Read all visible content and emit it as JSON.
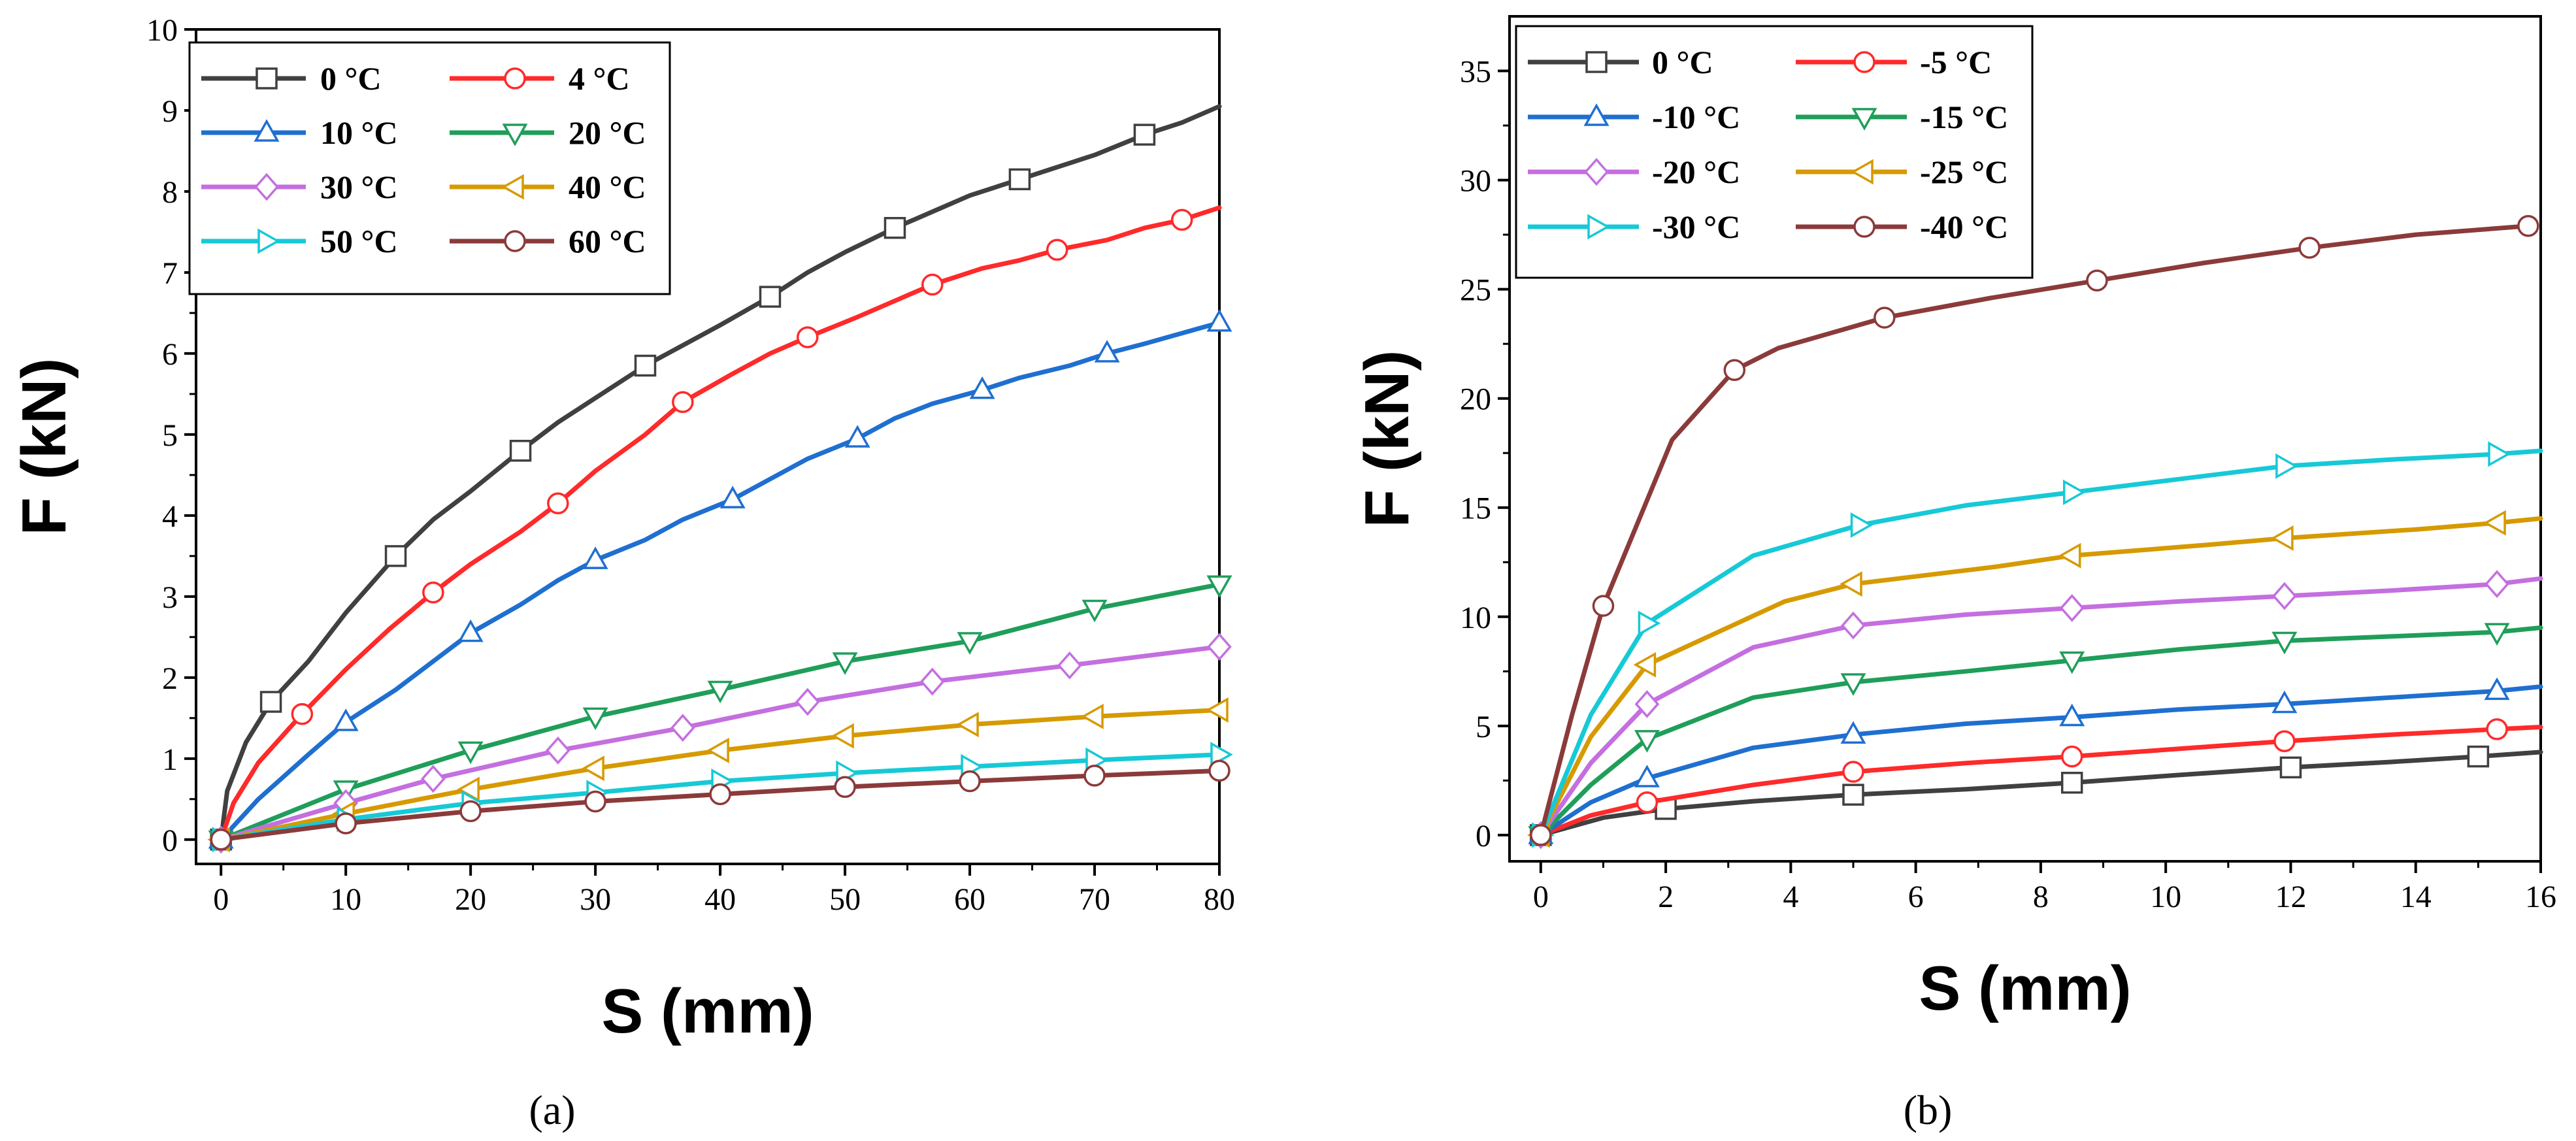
{
  "chart_data": [
    {
      "type": "line",
      "panel_label": "(a)",
      "xlabel": "S (mm)",
      "ylabel": "F (kN)",
      "xlim": [
        -2,
        80
      ],
      "ylim": [
        -0.3,
        10
      ],
      "xticks": [
        0,
        10,
        20,
        30,
        40,
        50,
        60,
        70,
        80
      ],
      "yticks": [
        0,
        1,
        2,
        3,
        4,
        5,
        6,
        7,
        8,
        9,
        10
      ],
      "grid": false,
      "legend_position": "top-left",
      "legend_columns": 2,
      "series": [
        {
          "name": "0 °C",
          "color": "#404040",
          "marker": "square",
          "x": [
            0,
            0.5,
            2,
            4,
            7,
            10,
            14,
            17,
            20,
            24,
            27,
            30,
            34,
            37,
            40,
            44,
            47,
            50,
            54,
            57,
            60,
            64,
            67,
            70,
            74,
            77,
            80
          ],
          "y": [
            0,
            0.6,
            1.2,
            1.7,
            2.2,
            2.8,
            3.5,
            3.95,
            4.3,
            4.8,
            5.15,
            5.45,
            5.85,
            6.1,
            6.35,
            6.7,
            7.0,
            7.25,
            7.55,
            7.75,
            7.95,
            8.15,
            8.3,
            8.45,
            8.7,
            8.85,
            9.05
          ]
        },
        {
          "name": "4 °C",
          "color": "#ff2a2a",
          "marker": "circle",
          "x": [
            0,
            1,
            3,
            6.5,
            10,
            13.5,
            17,
            20,
            24,
            27,
            30,
            34,
            37,
            41,
            44,
            47,
            51,
            54,
            57,
            61,
            64,
            67,
            71,
            74,
            77,
            80
          ],
          "y": [
            0,
            0.45,
            0.95,
            1.55,
            2.1,
            2.6,
            3.05,
            3.4,
            3.8,
            4.15,
            4.55,
            5.0,
            5.4,
            5.75,
            6.0,
            6.2,
            6.45,
            6.65,
            6.85,
            7.05,
            7.15,
            7.28,
            7.4,
            7.55,
            7.65,
            7.8
          ]
        },
        {
          "name": "10 °C",
          "color": "#1f6fd0",
          "marker": "triangle-up",
          "x": [
            0,
            3,
            7,
            10,
            14,
            17,
            20,
            24,
            27,
            30,
            34,
            37,
            41,
            44,
            47,
            51,
            54,
            57,
            61,
            64,
            68,
            71,
            74,
            77,
            80
          ],
          "y": [
            0,
            0.5,
            1.05,
            1.45,
            1.85,
            2.2,
            2.55,
            2.9,
            3.2,
            3.45,
            3.7,
            3.95,
            4.2,
            4.45,
            4.7,
            4.95,
            5.2,
            5.38,
            5.55,
            5.7,
            5.85,
            6.0,
            6.12,
            6.25,
            6.38
          ]
        },
        {
          "name": "20 °C",
          "color": "#1f9e5a",
          "marker": "triangle-down",
          "x": [
            0,
            10,
            20,
            30,
            40,
            50,
            60,
            70,
            80
          ],
          "y": [
            0,
            0.62,
            1.1,
            1.52,
            1.85,
            2.2,
            2.45,
            2.85,
            3.15
          ]
        },
        {
          "name": "30 °C",
          "color": "#c46fe0",
          "marker": "diamond",
          "x": [
            0,
            10,
            17,
            27,
            37,
            47,
            57,
            68,
            80
          ],
          "y": [
            0,
            0.45,
            0.75,
            1.1,
            1.38,
            1.7,
            1.95,
            2.15,
            2.38
          ]
        },
        {
          "name": "40 °C",
          "color": "#d69a00",
          "marker": "triangle-left",
          "x": [
            0,
            10,
            20,
            30,
            40,
            50,
            60,
            70,
            80
          ],
          "y": [
            0,
            0.32,
            0.62,
            0.88,
            1.1,
            1.28,
            1.42,
            1.52,
            1.6
          ]
        },
        {
          "name": "50 °C",
          "color": "#17c9d6",
          "marker": "triangle-right",
          "x": [
            0,
            10,
            20,
            30,
            40,
            50,
            60,
            70,
            80
          ],
          "y": [
            0,
            0.25,
            0.45,
            0.58,
            0.72,
            0.82,
            0.9,
            0.98,
            1.05
          ]
        },
        {
          "name": "60 °C",
          "color": "#8b3a3a",
          "marker": "circle",
          "x": [
            0,
            10,
            20,
            30,
            40,
            50,
            60,
            70,
            80
          ],
          "y": [
            0,
            0.2,
            0.35,
            0.47,
            0.56,
            0.65,
            0.72,
            0.79,
            0.85
          ]
        }
      ]
    },
    {
      "type": "line",
      "panel_label": "(b)",
      "xlabel": "S (mm)",
      "ylabel": "F (kN)",
      "xlim": [
        -0.5,
        16
      ],
      "ylim": [
        -1.2,
        37.5
      ],
      "xticks": [
        0,
        2,
        4,
        6,
        8,
        10,
        12,
        14,
        16
      ],
      "yticks": [
        0,
        5,
        10,
        15,
        20,
        25,
        30,
        35
      ],
      "grid": false,
      "legend_position": "top-left",
      "legend_columns": 2,
      "series": [
        {
          "name": "0 °C",
          "color": "#404040",
          "marker": "square",
          "x": [
            0,
            1,
            2,
            3.4,
            5,
            6.8,
            8.5,
            10.2,
            12,
            13.6,
            15,
            16
          ],
          "y": [
            0,
            0.8,
            1.2,
            1.55,
            1.85,
            2.1,
            2.4,
            2.75,
            3.1,
            3.35,
            3.6,
            3.8
          ]
        },
        {
          "name": "-5 °C",
          "color": "#ff2a2a",
          "marker": "circle",
          "x": [
            0,
            0.8,
            1.7,
            3.4,
            5,
            6.8,
            8.5,
            10.2,
            11.9,
            13.6,
            15.3,
            16
          ],
          "y": [
            0,
            0.9,
            1.5,
            2.3,
            2.9,
            3.3,
            3.6,
            3.95,
            4.3,
            4.6,
            4.85,
            4.95
          ]
        },
        {
          "name": "-10 °C",
          "color": "#1f6fd0",
          "marker": "triangle-up",
          "x": [
            0,
            0.8,
            1.7,
            3.4,
            5,
            6.8,
            8.5,
            10.2,
            11.9,
            13.6,
            15.3,
            16
          ],
          "y": [
            0,
            1.5,
            2.6,
            4.0,
            4.6,
            5.1,
            5.4,
            5.75,
            6.0,
            6.3,
            6.6,
            6.8
          ]
        },
        {
          "name": "-15 °C",
          "color": "#1f9e5a",
          "marker": "triangle-down",
          "x": [
            0,
            0.8,
            1.7,
            3.4,
            5,
            6.8,
            8.5,
            10.2,
            11.9,
            13.6,
            15.3,
            16
          ],
          "y": [
            0,
            2.3,
            4.4,
            6.3,
            7.0,
            7.5,
            8.0,
            8.5,
            8.9,
            9.1,
            9.3,
            9.5
          ]
        },
        {
          "name": "-20 °C",
          "color": "#c46fe0",
          "marker": "diamond",
          "x": [
            0,
            0.8,
            1.7,
            3.4,
            5,
            6.8,
            8.5,
            10.2,
            11.9,
            13.6,
            15.3,
            16
          ],
          "y": [
            0,
            3.3,
            6.0,
            8.6,
            9.6,
            10.1,
            10.4,
            10.7,
            10.95,
            11.2,
            11.5,
            11.75
          ]
        },
        {
          "name": "-25 °C",
          "color": "#d69a00",
          "marker": "triangle-left",
          "x": [
            0,
            0.8,
            1.7,
            3.9,
            5,
            7.3,
            8.5,
            10.7,
            11.9,
            14,
            15.3,
            16
          ],
          "y": [
            0,
            4.5,
            7.8,
            10.7,
            11.5,
            12.3,
            12.8,
            13.3,
            13.6,
            14.0,
            14.3,
            14.5
          ]
        },
        {
          "name": "-30 °C",
          "color": "#17c9d6",
          "marker": "triangle-right",
          "x": [
            0,
            0.8,
            1.7,
            3.4,
            5.1,
            6.8,
            8.5,
            10.2,
            11.9,
            13.6,
            15.3,
            16
          ],
          "y": [
            0,
            5.5,
            9.7,
            12.8,
            14.2,
            15.1,
            15.7,
            16.3,
            16.9,
            17.2,
            17.45,
            17.6
          ]
        },
        {
          "name": "-40 °C",
          "color": "#8b3a3a",
          "marker": "circle",
          "x": [
            0,
            0.5,
            1,
            2.1,
            3.1,
            3.8,
            5.5,
            7.2,
            8.9,
            10.6,
            12.3,
            14,
            15.8
          ],
          "y": [
            0,
            5.5,
            10.5,
            18.1,
            21.3,
            22.3,
            23.7,
            24.6,
            25.4,
            26.2,
            26.9,
            27.5,
            27.9
          ]
        }
      ]
    }
  ]
}
